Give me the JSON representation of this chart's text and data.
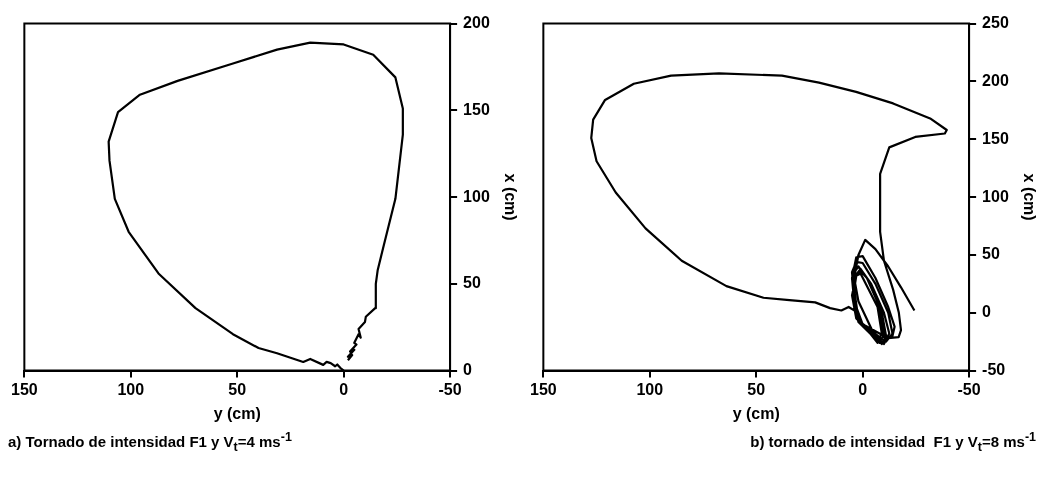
{
  "chart_data": [
    {
      "type": "line",
      "xlabel": "y (cm)",
      "ylabel": "x (cm)",
      "xlim": [
        150,
        -50
      ],
      "xticks": [
        150,
        100,
        50,
        0,
        -50
      ],
      "ylim": [
        0,
        200
      ],
      "yticks": [
        0,
        50,
        100,
        150,
        200
      ],
      "grid": false,
      "legend": false,
      "marker": "none",
      "line_style": "solid",
      "annotations": [
        "a) Tornado de intensidad F1 y V$_{t}$=4 ms$^{-1}$"
      ],
      "series": [
        {
          "color": "#000000",
          "x": [
            -2,
            -4,
            -2,
            -5,
            -3,
            -6,
            -5,
            -7,
            -8,
            -7,
            -10,
            -10.4,
            -14.8,
            -15.1,
            -16,
            -19,
            -24.3,
            -27.8,
            -27.8,
            -24.3,
            -13.9,
            0,
            15.7,
            31.3,
            52,
            78,
            95.7,
            106,
            110.4,
            110,
            107.5,
            101,
            87,
            69.6,
            52,
            40,
            31.3,
            19,
            15.7,
            9.6,
            8,
            6.1,
            4,
            3,
            1.5,
            0
          ],
          "values": [
            6,
            9,
            8,
            12,
            11,
            15,
            16,
            21,
            19,
            24,
            28,
            31,
            36,
            50,
            58,
            73,
            99,
            136,
            151,
            169,
            182,
            188,
            189,
            185,
            177,
            167,
            159,
            149,
            132,
            121,
            99,
            80,
            56,
            36,
            21,
            13,
            10,
            5,
            6.7,
            3.3,
            5,
            4.3,
            2.5,
            3.5,
            1.5,
            0
          ]
        }
      ]
    },
    {
      "type": "line",
      "xlabel": "y (cm)",
      "ylabel": "x (cm)",
      "xlim": [
        150,
        -50
      ],
      "xticks": [
        150,
        100,
        50,
        0,
        -50
      ],
      "ylim": [
        -50,
        250
      ],
      "yticks": [
        -50,
        0,
        50,
        100,
        150,
        200,
        250
      ],
      "grid": false,
      "legend": false,
      "marker": "none",
      "line_style": "solid",
      "annotations": [
        "b) tornado de intensidad  F1 y V$_{t}$=8 ms$^{-1}$"
      ],
      "series": [
        {
          "color": "#000000",
          "x": [
            3,
            6.6,
            10,
            15.3,
            22.3,
            34.4,
            46.6,
            64,
            85,
            102,
            116,
            125,
            127.5,
            126.6,
            121,
            107.5,
            90,
            67.5,
            37.9,
            20.5,
            3.1,
            -14.3,
            -31.7,
            -39.5,
            -38.6,
            -24.7,
            -12.5,
            -8.2,
            -8.2,
            -10,
            -14.3,
            -17,
            -18,
            -16.9,
            -12,
            0,
            4,
            5,
            3,
            0,
            -6,
            -12,
            -15,
            -14,
            -10,
            1,
            4,
            5,
            3,
            0,
            -6,
            -12,
            -14,
            -11,
            -8,
            2,
            4.5,
            4,
            2,
            -4,
            -10,
            -12.5,
            -10,
            3,
            5,
            3,
            1,
            -4,
            -9,
            -11,
            -9,
            3,
            5,
            3,
            1,
            -2,
            -8,
            -10,
            -7,
            2,
            4,
            3,
            1,
            -7,
            -9,
            -7,
            2,
            4,
            2,
            -1.2,
            -6,
            -12,
            -18,
            -24.3
          ],
          "values": [
            1,
            5,
            2,
            4,
            9,
            11,
            13,
            23,
            45,
            73,
            104,
            131,
            151,
            167,
            184,
            198,
            205,
            207,
            205,
            199,
            191,
            181,
            168,
            158,
            155,
            152,
            143,
            120,
            70,
            45,
            20,
            0,
            -15,
            -21,
            -22,
            -10,
            10,
            30,
            48,
            49,
            30,
            5,
            -12,
            -20,
            -24,
            -8,
            12,
            35,
            44,
            43,
            25,
            0,
            -18,
            -25,
            -26,
            -8,
            15,
            35,
            40,
            25,
            0,
            -18,
            -27,
            -5,
            15,
            33,
            38,
            25,
            0,
            -20,
            -27,
            -5,
            15,
            33,
            36,
            30,
            5,
            -20,
            -26,
            -5,
            20,
            32,
            34,
            5,
            -18,
            -25,
            10,
            30,
            50,
            63,
            55,
            40,
            22,
            2
          ]
        }
      ]
    }
  ]
}
